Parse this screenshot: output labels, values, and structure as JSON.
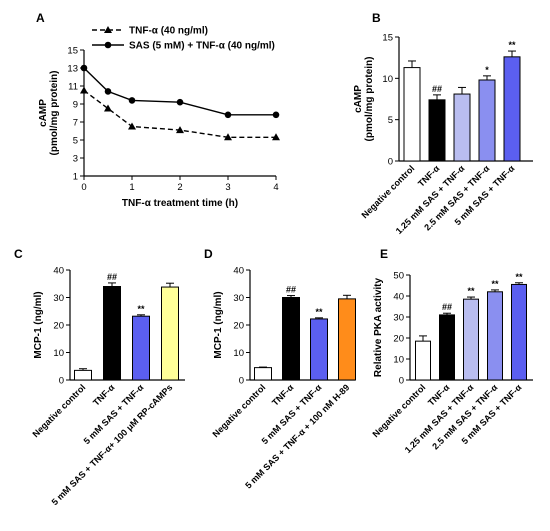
{
  "chart_data": [
    {
      "panel": "A",
      "type": "line",
      "xlabel": "TNF-α treatment time (h)",
      "ylabel_lines": [
        "cAMP",
        "(pmol/mg protein)"
      ],
      "x_ticks": [
        0,
        1,
        2,
        3,
        4
      ],
      "y_ticks": [
        1,
        3,
        5,
        7,
        9,
        11,
        13,
        15
      ],
      "xlim": [
        0,
        4
      ],
      "ylim": [
        1,
        15
      ],
      "grid": false,
      "legend_position": "top-left",
      "series": [
        {
          "name": "TNF-α (40 ng/ml)",
          "marker": "triangle",
          "line": "dashed",
          "x": [
            0,
            0.5,
            1,
            2,
            3,
            4
          ],
          "y": [
            10.5,
            8.5,
            6.5,
            6.1,
            5.3,
            5.3
          ]
        },
        {
          "name": "SAS (5 mM) + TNF-α (40 ng/ml)",
          "marker": "circle",
          "line": "solid",
          "x": [
            0,
            0.5,
            1,
            2,
            3,
            4
          ],
          "y": [
            13.0,
            10.4,
            9.4,
            9.2,
            7.8,
            7.8
          ]
        }
      ]
    },
    {
      "panel": "B",
      "type": "bar",
      "ylabel_lines": [
        "cAMP",
        "(pmol/mg protein)"
      ],
      "y_ticks": [
        0,
        5,
        10,
        15
      ],
      "ylim": [
        0,
        15
      ],
      "categories": [
        "Negative control",
        "TNF-α",
        "1.25 mM SAS + TNF-α",
        "2.5 mM SAS + TNF-α",
        "5 mM SAS + TNF-α"
      ],
      "values": [
        11.3,
        7.4,
        8.1,
        9.8,
        12.6
      ],
      "errors": [
        0.8,
        0.6,
        0.8,
        0.5,
        0.7
      ],
      "colors": [
        "#ffffff",
        "#000000",
        "#b9bdf0",
        "#8a8ff0",
        "#5b5ff0"
      ],
      "significance": [
        "",
        "##",
        "",
        "*",
        "**"
      ]
    },
    {
      "panel": "C",
      "type": "bar",
      "ylabel_lines": [
        "MCP-1 (ng/ml)"
      ],
      "y_ticks": [
        0,
        10,
        20,
        30,
        40
      ],
      "ylim": [
        0,
        40
      ],
      "categories": [
        "Negative control",
        "TNF-α",
        "5 mM SAS + TNF-α",
        "5 mM SAS + TNF-α+ 100 μM RP-cAMPs"
      ],
      "values": [
        3.5,
        34.0,
        23.2,
        33.8
      ],
      "errors": [
        0.6,
        1.3,
        0.5,
        1.4
      ],
      "colors": [
        "#ffffff",
        "#000000",
        "#5b5ff0",
        "#ffff99"
      ],
      "significance": [
        "",
        "##",
        "**",
        ""
      ]
    },
    {
      "panel": "D",
      "type": "bar",
      "ylabel_lines": [
        "MCP-1 (ng/ml)"
      ],
      "y_ticks": [
        0,
        10,
        20,
        30,
        40
      ],
      "ylim": [
        0,
        40
      ],
      "categories": [
        "Negative control",
        "TNF-α",
        "5 mM SAS + TNF-α",
        "5 mM SAS + TNF-α + 100 nM H-89"
      ],
      "values": [
        4.5,
        30.0,
        22.2,
        29.5
      ],
      "errors": [
        0.2,
        0.7,
        0.4,
        1.3
      ],
      "colors": [
        "#ffffff",
        "#000000",
        "#5b5ff0",
        "#ff8c1a"
      ],
      "significance": [
        "",
        "##",
        "**",
        ""
      ]
    },
    {
      "panel": "E",
      "type": "bar",
      "ylabel_lines": [
        "Relative PKA activity"
      ],
      "y_ticks": [
        0,
        10,
        20,
        30,
        40,
        50
      ],
      "ylim": [
        0,
        50
      ],
      "categories": [
        "Negative control",
        "TNF-α",
        "1.25 mM SAS + TNF-α",
        "2.5 mM SAS + TNF-α",
        "5 mM SAS + TNF-α"
      ],
      "values": [
        18.5,
        31.0,
        38.5,
        42.0,
        45.5
      ],
      "errors": [
        2.5,
        0.8,
        1.0,
        0.9,
        0.8
      ],
      "colors": [
        "#ffffff",
        "#000000",
        "#b9bdf0",
        "#8a8ff0",
        "#5b5ff0"
      ],
      "significance": [
        "",
        "##",
        "**",
        "**",
        "**"
      ]
    }
  ]
}
